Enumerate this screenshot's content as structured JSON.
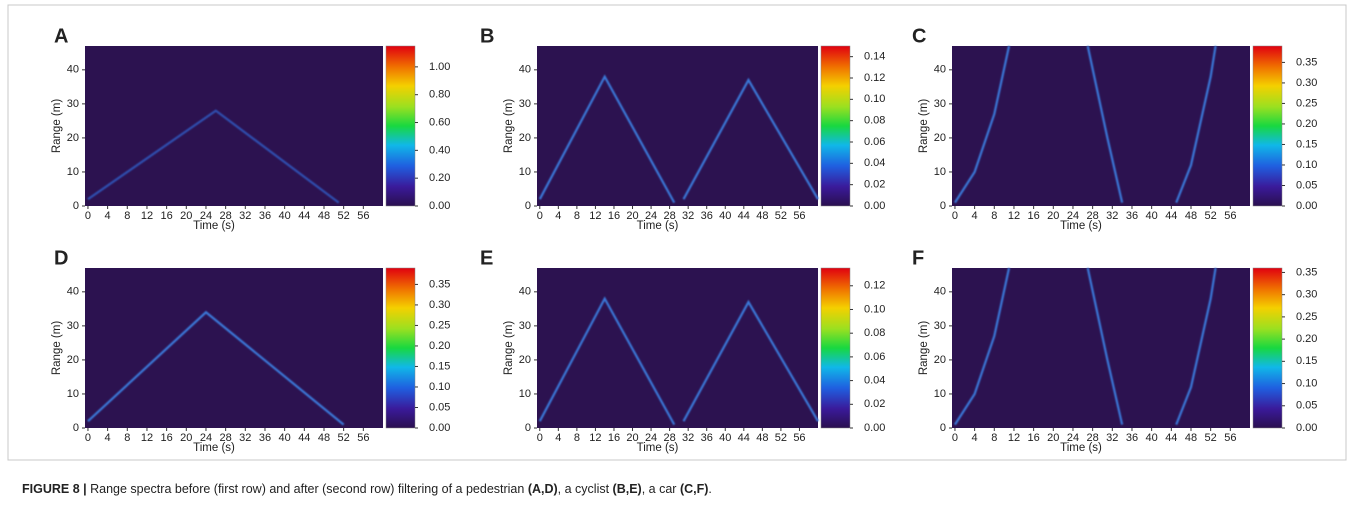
{
  "chart_data": [
    {
      "type": "heatmap",
      "label": "A",
      "xlabel": "Time (s)",
      "ylabel": "Range (m)",
      "xlim": [
        -0.6,
        60
      ],
      "ylim": [
        0,
        47
      ],
      "xticks": [
        0,
        4,
        8,
        12,
        16,
        20,
        24,
        28,
        32,
        36,
        40,
        44,
        48,
        52,
        56
      ],
      "yticks": [
        0,
        10,
        20,
        30,
        40
      ],
      "clim": [
        0,
        1.15
      ],
      "cticks": [
        {
          "value": 0,
          "label": "0.00"
        },
        {
          "value": 0.2,
          "label": "0.20"
        },
        {
          "value": 0.4,
          "label": "0.40"
        },
        {
          "value": 0.6,
          "label": "0.60"
        },
        {
          "value": 0.8,
          "label": "0.80"
        },
        {
          "value": 1,
          "label": "1.00"
        }
      ],
      "series": [
        {
          "color": "#2f4fb0",
          "x": [
            0,
            26,
            51
          ],
          "y": [
            2,
            28,
            1
          ]
        }
      ]
    },
    {
      "type": "heatmap",
      "label": "B",
      "xlabel": "Time (s)",
      "ylabel": "Range (m)",
      "xlim": [
        -0.6,
        60
      ],
      "ylim": [
        0,
        47
      ],
      "xticks": [
        0,
        4,
        8,
        12,
        16,
        20,
        24,
        28,
        32,
        36,
        40,
        44,
        48,
        52,
        56
      ],
      "yticks": [
        0,
        10,
        20,
        30,
        40
      ],
      "clim": [
        0,
        0.15
      ],
      "cticks": [
        {
          "value": 0,
          "label": "0.00"
        },
        {
          "value": 0.02,
          "label": "0.02"
        },
        {
          "value": 0.04,
          "label": "0.04"
        },
        {
          "value": 0.06,
          "label": "0.06"
        },
        {
          "value": 0.08,
          "label": "0.08"
        },
        {
          "value": 0.1,
          "label": "0.10"
        },
        {
          "value": 0.12,
          "label": "0.12"
        },
        {
          "value": 0.14,
          "label": "0.14"
        }
      ],
      "series": [
        {
          "color": "#3a78d8",
          "x": [
            0,
            14,
            29
          ],
          "y": [
            2,
            38,
            1
          ]
        },
        {
          "color": "#3a78d8",
          "x": [
            31,
            45,
            60
          ],
          "y": [
            2,
            37,
            2
          ]
        }
      ]
    },
    {
      "type": "heatmap",
      "label": "C",
      "xlabel": "Time (s)",
      "ylabel": "Range (m)",
      "xlim": [
        -0.6,
        60
      ],
      "ylim": [
        0,
        47
      ],
      "xticks": [
        0,
        4,
        8,
        12,
        16,
        20,
        24,
        28,
        32,
        36,
        40,
        44,
        48,
        52,
        56
      ],
      "yticks": [
        0,
        10,
        20,
        30,
        40
      ],
      "clim": [
        0,
        0.39
      ],
      "cticks": [
        {
          "value": 0,
          "label": "0.00"
        },
        {
          "value": 0.05,
          "label": "0.05"
        },
        {
          "value": 0.1,
          "label": "0.10"
        },
        {
          "value": 0.15,
          "label": "0.15"
        },
        {
          "value": 0.2,
          "label": "0.20"
        },
        {
          "value": 0.25,
          "label": "0.25"
        },
        {
          "value": 0.3,
          "label": "0.30"
        },
        {
          "value": 0.35,
          "label": "0.35"
        }
      ],
      "series": [
        {
          "color": "#3a78d8",
          "x": [
            0,
            4,
            8,
            11
          ],
          "y": [
            1,
            10,
            27,
            47
          ]
        },
        {
          "color": "#3a78d8",
          "x": [
            27,
            31,
            34
          ],
          "y": [
            47,
            20,
            1
          ]
        },
        {
          "color": "#3a78d8",
          "x": [
            45,
            48,
            52,
            53
          ],
          "y": [
            1,
            12,
            38,
            47
          ]
        }
      ]
    },
    {
      "type": "heatmap",
      "label": "D",
      "xlabel": "Time (s)",
      "ylabel": "Range (m)",
      "xlim": [
        -0.6,
        60
      ],
      "ylim": [
        0,
        47
      ],
      "xticks": [
        0,
        4,
        8,
        12,
        16,
        20,
        24,
        28,
        32,
        36,
        40,
        44,
        48,
        52,
        56
      ],
      "yticks": [
        0,
        10,
        20,
        30,
        40
      ],
      "clim": [
        0,
        0.39
      ],
      "cticks": [
        {
          "value": 0,
          "label": "0.00"
        },
        {
          "value": 0.05,
          "label": "0.05"
        },
        {
          "value": 0.1,
          "label": "0.10"
        },
        {
          "value": 0.15,
          "label": "0.15"
        },
        {
          "value": 0.2,
          "label": "0.20"
        },
        {
          "value": 0.25,
          "label": "0.25"
        },
        {
          "value": 0.3,
          "label": "0.30"
        },
        {
          "value": 0.35,
          "label": "0.35"
        }
      ],
      "series": [
        {
          "color": "#3a78d8",
          "x": [
            0,
            24,
            52
          ],
          "y": [
            2,
            34,
            1
          ]
        }
      ]
    },
    {
      "type": "heatmap",
      "label": "E",
      "xlabel": "Time (s)",
      "ylabel": "Range (m)",
      "xlim": [
        -0.6,
        60
      ],
      "ylim": [
        0,
        47
      ],
      "xticks": [
        0,
        4,
        8,
        12,
        16,
        20,
        24,
        28,
        32,
        36,
        40,
        44,
        48,
        52,
        56
      ],
      "yticks": [
        0,
        10,
        20,
        30,
        40
      ],
      "clim": [
        0,
        0.135
      ],
      "cticks": [
        {
          "value": 0,
          "label": "0.00"
        },
        {
          "value": 0.02,
          "label": "0.02"
        },
        {
          "value": 0.04,
          "label": "0.04"
        },
        {
          "value": 0.06,
          "label": "0.06"
        },
        {
          "value": 0.08,
          "label": "0.08"
        },
        {
          "value": 0.1,
          "label": "0.10"
        },
        {
          "value": 0.12,
          "label": "0.12"
        }
      ],
      "series": [
        {
          "color": "#3a78d8",
          "x": [
            0,
            14,
            29
          ],
          "y": [
            2,
            38,
            1
          ]
        },
        {
          "color": "#3a78d8",
          "x": [
            31,
            45,
            60
          ],
          "y": [
            2,
            37,
            2
          ]
        }
      ]
    },
    {
      "type": "heatmap",
      "label": "F",
      "xlabel": "Time (s)",
      "ylabel": "Range (m)",
      "xlim": [
        -0.6,
        60
      ],
      "ylim": [
        0,
        47
      ],
      "xticks": [
        0,
        4,
        8,
        12,
        16,
        20,
        24,
        28,
        32,
        36,
        40,
        44,
        48,
        52,
        56
      ],
      "yticks": [
        0,
        10,
        20,
        30,
        40
      ],
      "clim": [
        0,
        0.36
      ],
      "cticks": [
        {
          "value": 0,
          "label": "0.00"
        },
        {
          "value": 0.05,
          "label": "0.05"
        },
        {
          "value": 0.1,
          "label": "0.10"
        },
        {
          "value": 0.15,
          "label": "0.15"
        },
        {
          "value": 0.2,
          "label": "0.20"
        },
        {
          "value": 0.25,
          "label": "0.25"
        },
        {
          "value": 0.3,
          "label": "0.30"
        },
        {
          "value": 0.35,
          "label": "0.35"
        }
      ],
      "series": [
        {
          "color": "#3a78d8",
          "x": [
            0,
            4,
            8,
            11
          ],
          "y": [
            1,
            10,
            27,
            47
          ]
        },
        {
          "color": "#3a78d8",
          "x": [
            27,
            31,
            34
          ],
          "y": [
            47,
            20,
            1
          ]
        },
        {
          "color": "#3a78d8",
          "x": [
            45,
            48,
            52,
            53
          ],
          "y": [
            1,
            12,
            38,
            47
          ]
        }
      ]
    }
  ],
  "caption": [
    {
      "text": "FIGURE 8 |",
      "bold": true
    },
    {
      "text": " Range spectra before (first row) and after (second row) filtering of a pedestrian ",
      "bold": false
    },
    {
      "text": "(A,D)",
      "bold": true
    },
    {
      "text": ", a cyclist ",
      "bold": false
    },
    {
      "text": "(B,E)",
      "bold": true
    },
    {
      "text": ", a car ",
      "bold": false
    },
    {
      "text": "(C,F)",
      "bold": true
    },
    {
      "text": ".",
      "bold": false
    }
  ]
}
